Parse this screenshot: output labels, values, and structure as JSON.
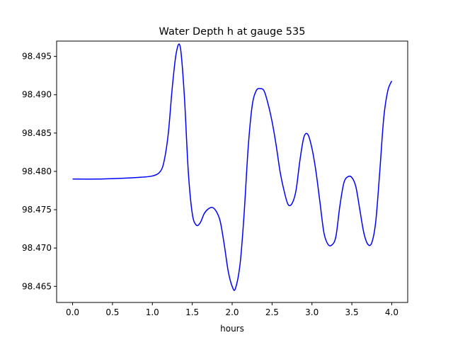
{
  "chart_data": {
    "type": "line",
    "title": "Water Depth h at gauge 535",
    "xlabel": "hours",
    "ylabel": "",
    "xlim": [
      -0.2,
      4.2
    ],
    "ylim": [
      98.4629,
      98.497
    ],
    "xticks": [
      0.0,
      0.5,
      1.0,
      1.5,
      2.0,
      2.5,
      3.0,
      3.5,
      4.0
    ],
    "xtick_labels": [
      "0.0",
      "0.5",
      "1.0",
      "1.5",
      "2.0",
      "2.5",
      "3.0",
      "3.5",
      "4.0"
    ],
    "yticks": [
      98.465,
      98.47,
      98.475,
      98.48,
      98.485,
      98.49,
      98.495
    ],
    "ytick_labels": [
      "98.465",
      "98.470",
      "98.475",
      "98.480",
      "98.485",
      "98.490",
      "98.495"
    ],
    "grid": false,
    "legend": "none",
    "series": [
      {
        "color": "#0000ff",
        "x": [
          0.0,
          0.3,
          0.6,
          0.8,
          1.0,
          1.1,
          1.15,
          1.2,
          1.25,
          1.3,
          1.35,
          1.4,
          1.45,
          1.5,
          1.55,
          1.6,
          1.65,
          1.7,
          1.75,
          1.8,
          1.85,
          1.9,
          1.95,
          2.0,
          2.04,
          2.1,
          2.15,
          2.2,
          2.25,
          2.3,
          2.35,
          2.4,
          2.45,
          2.5,
          2.55,
          2.6,
          2.65,
          2.7,
          2.75,
          2.8,
          2.85,
          2.9,
          2.95,
          3.0,
          3.05,
          3.1,
          3.15,
          3.2,
          3.25,
          3.3,
          3.35,
          3.4,
          3.45,
          3.5,
          3.55,
          3.6,
          3.65,
          3.7,
          3.75,
          3.8,
          3.85,
          3.9,
          3.95,
          4.0
        ],
        "y": [
          98.479,
          98.479,
          98.4791,
          98.4792,
          98.4794,
          98.48,
          98.4815,
          98.485,
          98.491,
          98.4955,
          98.4962,
          98.49,
          98.48,
          98.4745,
          98.473,
          98.4733,
          98.4745,
          98.4751,
          98.4753,
          98.4748,
          98.4735,
          98.4705,
          98.467,
          98.465,
          98.4647,
          98.468,
          98.4745,
          98.483,
          98.4885,
          98.4905,
          98.4908,
          98.4905,
          98.4888,
          98.4865,
          98.4835,
          98.48,
          98.4775,
          98.4757,
          98.4758,
          98.4775,
          98.4815,
          98.4845,
          98.4848,
          98.483,
          98.48,
          98.476,
          98.472,
          98.4705,
          98.4704,
          98.4715,
          98.4755,
          98.4785,
          98.4793,
          98.4792,
          98.478,
          98.475,
          98.472,
          98.4705,
          98.4707,
          98.4735,
          98.48,
          98.487,
          98.4905,
          98.4918
        ]
      }
    ]
  }
}
